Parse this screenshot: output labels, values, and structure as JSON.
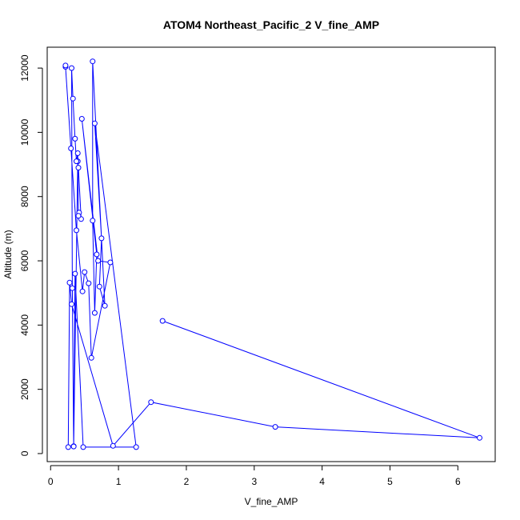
{
  "chart_data": {
    "type": "line",
    "title": "ATOM4 Northeast_Pacific_2 V_fine_AMP",
    "xlabel": "V_fine_AMP",
    "ylabel": "Altitude (m)",
    "xlim": [
      -0.05,
      6.55
    ],
    "ylim": [
      -250,
      12650
    ],
    "x_ticks": [
      0,
      1,
      2,
      3,
      4,
      5,
      6
    ],
    "y_ticks": [
      0,
      2000,
      4000,
      6000,
      8000,
      10000,
      12000
    ],
    "grid": false,
    "series_color": "#0000ff",
    "markers": "open-circle",
    "series": [
      {
        "x": [
          1.65,
          6.32,
          3.31,
          1.48,
          0.92,
          0.31,
          0.28,
          0.26,
          0.34,
          0.4,
          0.41,
          0.45,
          0.42,
          0.41,
          0.4,
          0.38,
          0.36,
          0.33,
          0.31,
          0.32,
          0.34,
          0.36,
          0.48,
          1.26,
          0.65,
          0.75,
          0.72,
          0.8,
          0.62,
          0.62,
          0.65,
          0.68,
          0.46,
          0.7,
          0.88,
          0.6,
          0.56,
          0.5,
          0.47,
          0.38,
          0.3,
          0.22,
          0.22
        ],
        "y": [
          4130,
          490,
          830,
          1600,
          240,
          4650,
          5320,
          200,
          230,
          9100,
          8900,
          7300,
          7500,
          7400,
          9350,
          9100,
          9800,
          11050,
          12000,
          5150,
          220,
          5600,
          200,
          200,
          10280,
          6700,
          5200,
          4600,
          12210,
          7250,
          4380,
          6200,
          10420,
          6000,
          5950,
          2980,
          5300,
          5650,
          5050,
          6950,
          9500,
          12040,
          12080
        ]
      }
    ]
  }
}
